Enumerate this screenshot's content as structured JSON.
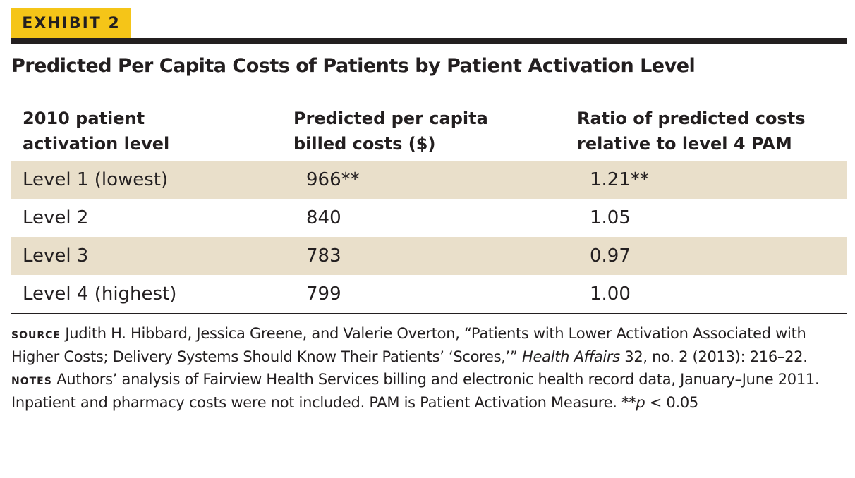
{
  "exhibit_label": "EXHIBIT 2",
  "title": "Predicted Per Capita Costs of Patients by Patient Activation Level",
  "chart_data": {
    "type": "table",
    "title": "Predicted Per Capita Costs of Patients by Patient Activation Level",
    "columns": [
      [
        "2010 patient",
        "activation level"
      ],
      [
        "Predicted per capita",
        "billed costs ($)"
      ],
      [
        "Ratio of predicted costs",
        "relative to level 4 PAM"
      ]
    ],
    "rows": [
      {
        "level": "Level 1 (lowest)",
        "cost": "966**",
        "ratio": "1.21**",
        "shaded": true
      },
      {
        "level": "Level 2",
        "cost": "840",
        "ratio": "1.05",
        "shaded": false
      },
      {
        "level": "Level 3",
        "cost": "783",
        "ratio": "0.97",
        "shaded": true
      },
      {
        "level": "Level 4 (highest)",
        "cost": "799",
        "ratio": "1.00",
        "shaded": false
      }
    ],
    "row_shading_color": "#e9dfca"
  },
  "footnote": {
    "source_label": "SOURCE",
    "source_text": "Judith H. Hibbard, Jessica Greene, and Valerie Overton, “Patients with Lower Activation Associated with Higher Costs; Delivery Systems Should Know Their Patients’ ‘Scores,’”",
    "source_journal": "Health Affairs",
    "source_citation": "32, no. 2 (2013): 216–22.",
    "notes_label": "NOTES",
    "notes_text": "Authors’ analysis of Fairview Health Services billing and electronic health record data, January–June 2011. Inpatient and pharmacy costs were not included. PAM is Patient Activation Measure. **",
    "notes_p": "p",
    "notes_tail": " < 0.05"
  },
  "colors": {
    "label_background": "#f5c518",
    "text": "#231f20",
    "row_shading": "#e9dfca"
  }
}
